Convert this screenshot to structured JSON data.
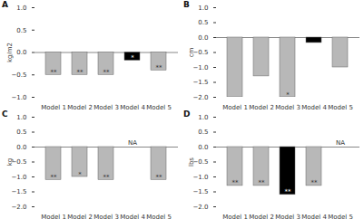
{
  "chart_data": [
    {
      "type": "bar",
      "title": "A",
      "ylabel": "kg/m2",
      "categories": [
        "Model 1",
        "Model 2",
        "Model 3",
        "Model 4",
        "Model 5"
      ],
      "values": [
        -0.5,
        -0.5,
        -0.5,
        -0.18,
        -0.4
      ],
      "colors": [
        "#b8b8b8",
        "#b8b8b8",
        "#b8b8b8",
        "#000000",
        "#b8b8b8"
      ],
      "ylim": [
        -1.0,
        1.0
      ],
      "yticks": [
        {
          "value": -1.0,
          "label": "−1.0"
        },
        {
          "value": -0.5,
          "label": "−0.5"
        },
        {
          "value": 0.0,
          "label": "0.0"
        },
        {
          "value": 0.5,
          "label": "0.5"
        },
        {
          "value": 1.0,
          "label": "1.0"
        }
      ],
      "annotations": [
        {
          "category": "Model 1",
          "text": "**"
        },
        {
          "category": "Model 2",
          "text": "**"
        },
        {
          "category": "Model 3",
          "text": "**"
        },
        {
          "category": "Model 4",
          "text": "*"
        },
        {
          "category": "Model 5",
          "text": "**"
        }
      ]
    },
    {
      "type": "bar",
      "title": "B",
      "ylabel": "cm",
      "categories": [
        "Model 1",
        "Model 2",
        "Model 3",
        "Model 4",
        "Model 5"
      ],
      "values": [
        -2.0,
        -1.3,
        -2.0,
        -0.18,
        -1.0
      ],
      "colors": [
        "#b8b8b8",
        "#b8b8b8",
        "#b8b8b8",
        "#000000",
        "#b8b8b8"
      ],
      "ylim": [
        -2.0,
        1.0
      ],
      "yticks": [
        {
          "value": -2.0,
          "label": "−2.0"
        },
        {
          "value": -1.5,
          "label": "−1.5"
        },
        {
          "value": -1.0,
          "label": "−1.0"
        },
        {
          "value": -0.5,
          "label": "−0.5"
        },
        {
          "value": 0.0,
          "label": "0.0"
        },
        {
          "value": 0.5,
          "label": "0.5"
        },
        {
          "value": 1.0,
          "label": "1.0"
        }
      ],
      "annotations": [
        {
          "category": "Model 3",
          "text": "*"
        }
      ]
    },
    {
      "type": "bar",
      "title": "C",
      "ylabel": "kg",
      "categories": [
        "Model 1",
        "Model 2",
        "Model 3",
        "Model 4",
        "Model 5"
      ],
      "values": [
        -1.1,
        -1.0,
        -1.1,
        null,
        -1.1
      ],
      "colors": [
        "#b8b8b8",
        "#b8b8b8",
        "#b8b8b8",
        "#b8b8b8",
        "#b8b8b8"
      ],
      "ylim": [
        -2.0,
        1.0
      ],
      "yticks": [
        {
          "value": -2.0,
          "label": "−2.0"
        },
        {
          "value": -1.5,
          "label": "−1.5"
        },
        {
          "value": -1.0,
          "label": "−1.0"
        },
        {
          "value": -0.5,
          "label": "−0.5"
        },
        {
          "value": 0.0,
          "label": "0.0"
        },
        {
          "value": 0.5,
          "label": "0.5"
        },
        {
          "value": 1.0,
          "label": "1.0"
        }
      ],
      "annotations": [
        {
          "category": "Model 1",
          "text": "**"
        },
        {
          "category": "Model 2",
          "text": "*"
        },
        {
          "category": "Model 3",
          "text": "**"
        },
        {
          "category": "Model 5",
          "text": "**"
        },
        {
          "category": "Model 4",
          "text": "NA"
        }
      ]
    },
    {
      "type": "bar",
      "title": "D",
      "ylabel": "lbs",
      "categories": [
        "Model 1",
        "Model 2",
        "Model 3",
        "Model 4",
        "Model 5"
      ],
      "values": [
        -1.3,
        -1.3,
        -1.6,
        -1.3,
        null
      ],
      "colors": [
        "#b8b8b8",
        "#b8b8b8",
        "#000000",
        "#b8b8b8",
        "#b8b8b8"
      ],
      "ylim": [
        -2.0,
        1.0
      ],
      "yticks": [
        {
          "value": -2.0,
          "label": "−2.0"
        },
        {
          "value": -1.5,
          "label": "−1.5"
        },
        {
          "value": -1.0,
          "label": "−1.0"
        },
        {
          "value": -0.5,
          "label": "−0.5"
        },
        {
          "value": 0.0,
          "label": "0.0"
        },
        {
          "value": 0.5,
          "label": "0.5"
        },
        {
          "value": 1.0,
          "label": "1.0"
        }
      ],
      "annotations": [
        {
          "category": "Model 1",
          "text": "**"
        },
        {
          "category": "Model 2",
          "text": "**"
        },
        {
          "category": "Model 3",
          "text": "**"
        },
        {
          "category": "Model 4",
          "text": "**"
        },
        {
          "category": "Model 5",
          "text": "NA"
        }
      ]
    }
  ]
}
